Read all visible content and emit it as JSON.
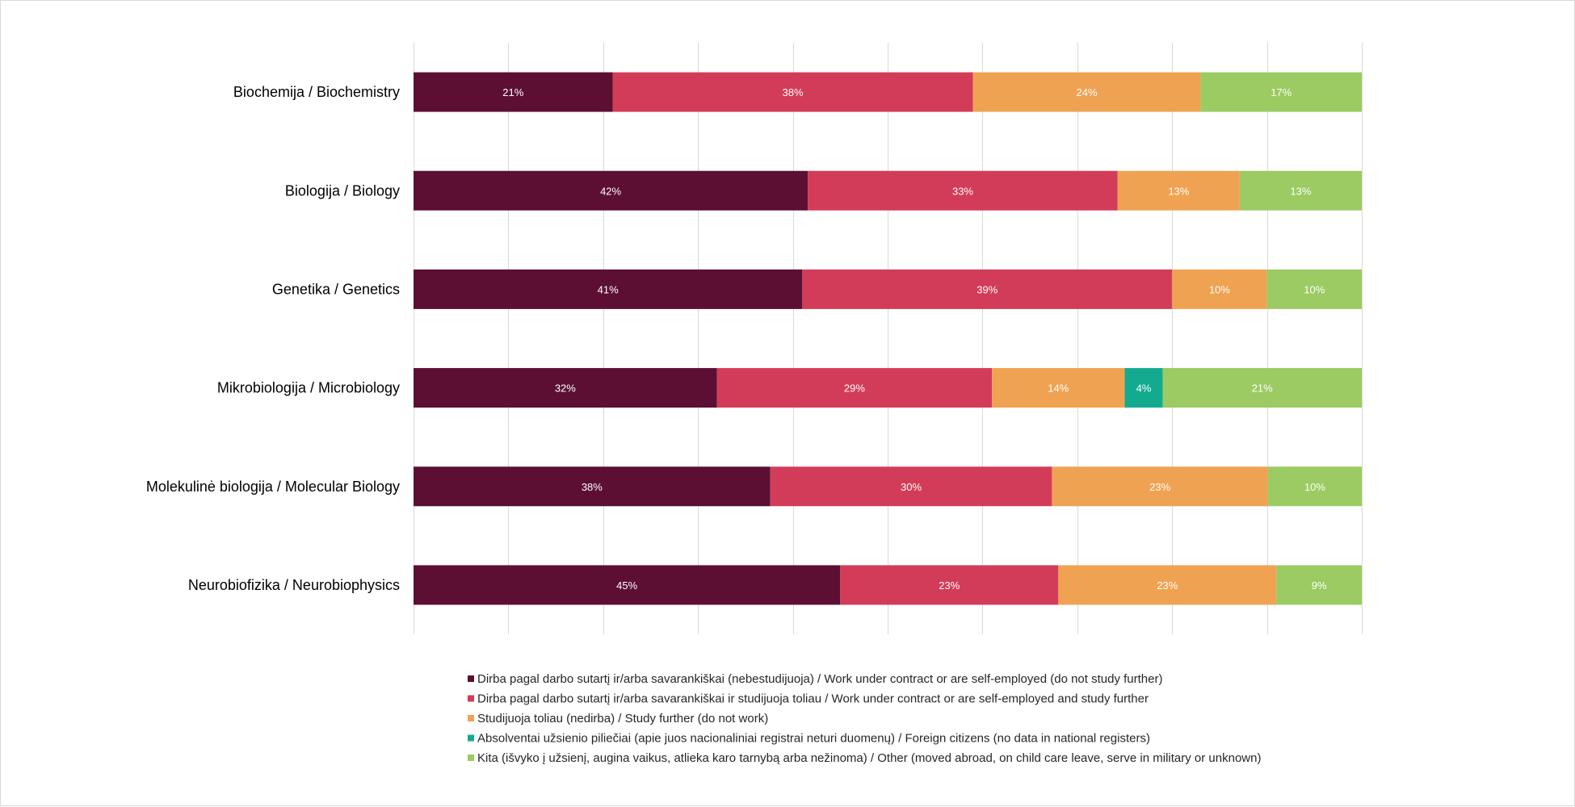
{
  "chart_data": {
    "type": "bar",
    "orientation": "horizontal",
    "stacked": true,
    "normalized_percent": true,
    "categories": [
      "Biochemija / Biochemistry",
      "Biologija / Biology",
      "Genetika / Genetics",
      "Mikrobiologija / Microbiology",
      "Molekulinė biologija / Molecular Biology",
      "Neurobiofizika / Neurobiophysics"
    ],
    "series": [
      {
        "name": "Dirba pagal darbo sutartį ir/arba savarankiškai (nebestudijuoja) / Work under contract or are self-employed (do not study further)",
        "color": "#5c0f32",
        "values": [
          21,
          42,
          41,
          32,
          38,
          45
        ]
      },
      {
        "name": "Dirba pagal darbo sutartį ir/arba savarankiškai  ir studijuoja toliau / Work under contract or are self-employed and study further",
        "color": "#d33c58",
        "values": [
          38,
          33,
          39,
          29,
          30,
          23
        ]
      },
      {
        "name": "Studijuoja toliau (nedirba) / Study further (do not work)",
        "color": "#efa352",
        "values": [
          24,
          13,
          10,
          14,
          23,
          23
        ]
      },
      {
        "name": "Absolventai užsienio piliečiai (apie juos nacionaliniai registrai neturi duomenų) / Foreign citizens (no data in national registers)",
        "color": "#13ab8f",
        "values": [
          0,
          0,
          0,
          4,
          0,
          0
        ]
      },
      {
        "name": "Kita (išvyko į užsienį, augina vaikus, atlieka karo tarnybą arba nežinoma) / Other (moved abroad, on child care leave, serve in military or unknown)",
        "color": "#9bcb62",
        "values": [
          17,
          13,
          10,
          21,
          10,
          9
        ]
      }
    ],
    "value_suffix": "%",
    "xlim": [
      0,
      100
    ],
    "grid": true,
    "legend_position": "bottom"
  }
}
